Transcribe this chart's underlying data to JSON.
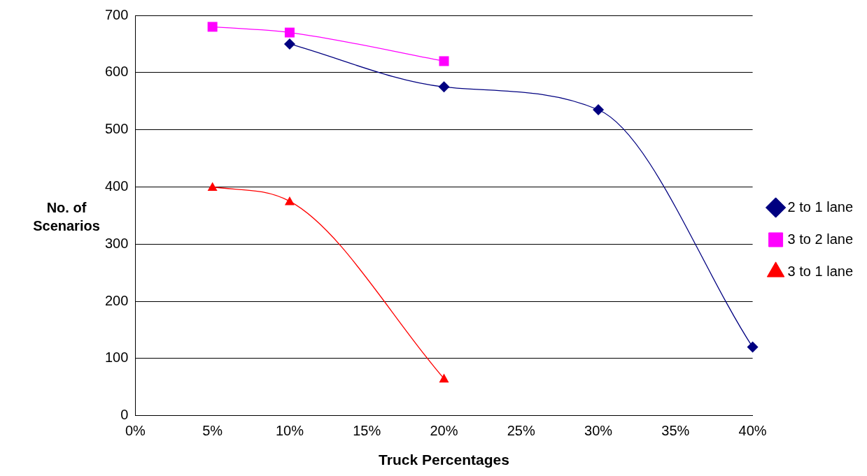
{
  "chart_data": {
    "type": "line",
    "xlabel": "Truck Percentages",
    "ylabel": "No. of Scenarios",
    "xlim": [
      0,
      40
    ],
    "xticks": [
      {
        "value": 0,
        "label": "0%"
      },
      {
        "value": 5,
        "label": "5%"
      },
      {
        "value": 10,
        "label": "10%"
      },
      {
        "value": 15,
        "label": "15%"
      },
      {
        "value": 20,
        "label": "20%"
      },
      {
        "value": 25,
        "label": "25%"
      },
      {
        "value": 30,
        "label": "30%"
      },
      {
        "value": 35,
        "label": "35%"
      },
      {
        "value": 40,
        "label": "40%"
      }
    ],
    "ylim": [
      0,
      700
    ],
    "yticks": [
      0,
      100,
      200,
      300,
      400,
      500,
      600,
      700
    ],
    "grid": "y",
    "legend": "right",
    "series": [
      {
        "name": "2 to 1 lane",
        "color": "#000080",
        "marker": "diamond",
        "x": [
          10,
          20,
          30,
          40
        ],
        "values": [
          650,
          575,
          535,
          120
        ]
      },
      {
        "name": "3 to 2 lane",
        "color": "#ff00ff",
        "marker": "square",
        "x": [
          5,
          10,
          20
        ],
        "values": [
          680,
          670,
          620
        ]
      },
      {
        "name": "3 to 1 lane",
        "color": "#ff0000",
        "marker": "triangle",
        "x": [
          5,
          10,
          20
        ],
        "values": [
          400,
          375,
          65
        ]
      }
    ]
  }
}
